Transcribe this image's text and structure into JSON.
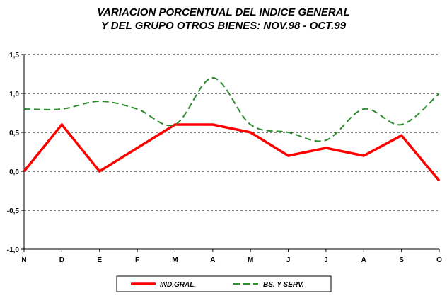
{
  "chart_data": {
    "type": "line",
    "title": "VARIACION PORCENTUAL DEL INDICE GENERAL",
    "subtitle": "Y DEL GRUPO OTROS BIENES: NOV.98 - OCT.99",
    "categories": [
      "N",
      "D",
      "E",
      "F",
      "M",
      "A",
      "M",
      "J",
      "J",
      "A",
      "S",
      "O"
    ],
    "ylim": [
      -1.0,
      1.5
    ],
    "yticks": [
      -1.0,
      -0.5,
      0.0,
      0.5,
      1.0,
      1.5
    ],
    "ytick_labels": [
      "-1,0",
      "-0,5",
      "0,0",
      "0,5",
      "1,0",
      "1,5"
    ],
    "grid": "horizontal dashed",
    "legend_position": "bottom",
    "series": [
      {
        "name": "IND.GRAL.",
        "values": [
          0.0,
          0.6,
          0.0,
          0.3,
          0.6,
          0.6,
          0.5,
          0.2,
          0.3,
          0.2,
          0.46,
          -0.12
        ],
        "color": "#ff0000",
        "style": "solid"
      },
      {
        "name": "BS. Y SERV.",
        "values": [
          0.8,
          0.8,
          0.9,
          0.8,
          0.6,
          1.2,
          0.6,
          0.5,
          0.4,
          0.8,
          0.6,
          1.0
        ],
        "color": "#2e8b2e",
        "style": "dashed"
      }
    ]
  }
}
